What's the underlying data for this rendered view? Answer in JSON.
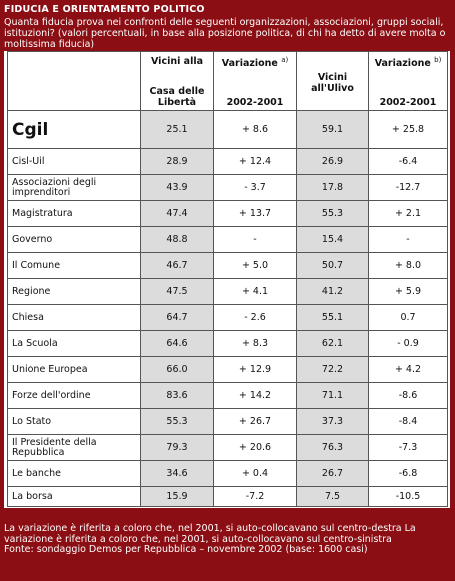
{
  "header": {
    "title": "FIDUCIA E ORIENTAMENTO POLITICO",
    "subtitle": "Quanta fiducia prova nei confronti delle seguenti organizzazioni, associazioni, gruppi sociali, istituzioni? (valori percentuali, in base alla posizione politica, di chi ha detto di avere molta o moltissima fiducia)"
  },
  "columns": {
    "col1_line1": "Vicini alla",
    "col1_line2": "Casa delle Libertà",
    "col2_line1": "Variazione",
    "col2_note": "a)",
    "col2_line2": "2002-2001",
    "col3_line1": "Vicini all'Ulivo",
    "col4_line1": "Variazione",
    "col4_note": "b)",
    "col4_line2": "2002-2001"
  },
  "rows": [
    {
      "label": "Cgil",
      "cdl": "25.1",
      "var_a": "+ 8.6",
      "ulivo": "59.1",
      "var_b": "+ 25.8"
    },
    {
      "label": "Cisl-Uil",
      "cdl": "28.9",
      "var_a": "+ 12.4",
      "ulivo": "26.9",
      "var_b": "-6.4"
    },
    {
      "label": "Associazioni degli imprenditori",
      "cdl": "43.9",
      "var_a": "- 3.7",
      "ulivo": "17.8",
      "var_b": "-12.7"
    },
    {
      "label": "Magistratura",
      "cdl": "47.4",
      "var_a": "+ 13.7",
      "ulivo": "55.3",
      "var_b": "+ 2.1"
    },
    {
      "label": "Governo",
      "cdl": "48.8",
      "var_a": "-",
      "ulivo": "15.4",
      "var_b": "-"
    },
    {
      "label": "Il Comune",
      "cdl": "46.7",
      "var_a": "+ 5.0",
      "ulivo": "50.7",
      "var_b": "+ 8.0"
    },
    {
      "label": "Regione",
      "cdl": "47.5",
      "var_a": "+ 4.1",
      "ulivo": "41.2",
      "var_b": "+ 5.9"
    },
    {
      "label": "Chiesa",
      "cdl": "64.7",
      "var_a": "- 2.6",
      "ulivo": "55.1",
      "var_b": "0.7"
    },
    {
      "label": "La Scuola",
      "cdl": "64.6",
      "var_a": "+ 8.3",
      "ulivo": "62.1",
      "var_b": "- 0.9"
    },
    {
      "label": "Unione Europea",
      "cdl": "66.0",
      "var_a": "+ 12.9",
      "ulivo": "72.2",
      "var_b": "+ 4.2"
    },
    {
      "label": "Forze dell'ordine",
      "cdl": "83.6",
      "var_a": "+ 14.2",
      "ulivo": "71.1",
      "var_b": "-8.6"
    },
    {
      "label": "Lo Stato",
      "cdl": "55.3",
      "var_a": "+ 26.7",
      "ulivo": "37.3",
      "var_b": "-8.4"
    },
    {
      "label": "Il Presidente della Repubblica",
      "cdl": "79.3",
      "var_a": "+ 20.6",
      "ulivo": "76.3",
      "var_b": "-7.3"
    },
    {
      "label": "Le banche",
      "cdl": "34.6",
      "var_a": "+ 0.4",
      "ulivo": "26.7",
      "var_b": "-6.8"
    },
    {
      "label": "La borsa",
      "cdl": "15.9",
      "var_a": "-7.2",
      "ulivo": "7.5",
      "var_b": "-10.5"
    }
  ],
  "footer": {
    "line1": "La variazione è riferita a coloro che, nel 2001, si auto-collocavano sul centro-destra La variazione è riferita a coloro che, nel 2001, si auto-collocavano sul centro-sinistra",
    "line2": "Fonte: sondaggio Demos per Repubblica – novembre 2002 (base: 1600 casi)"
  },
  "colors": {
    "frame": "#8a0e13",
    "shade": "#dcdcdc"
  }
}
